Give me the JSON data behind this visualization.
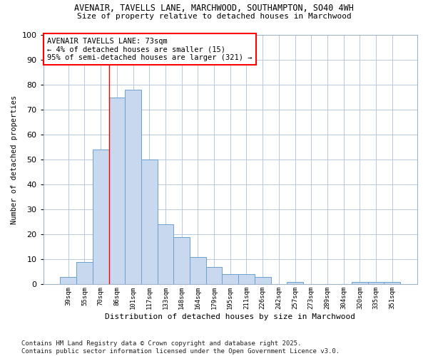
{
  "title1": "AVENAIR, TAVELLS LANE, MARCHWOOD, SOUTHAMPTON, SO40 4WH",
  "title2": "Size of property relative to detached houses in Marchwood",
  "xlabel": "Distribution of detached houses by size in Marchwood",
  "ylabel": "Number of detached properties",
  "categories": [
    "39sqm",
    "55sqm",
    "70sqm",
    "86sqm",
    "101sqm",
    "117sqm",
    "133sqm",
    "148sqm",
    "164sqm",
    "179sqm",
    "195sqm",
    "211sqm",
    "226sqm",
    "242sqm",
    "257sqm",
    "273sqm",
    "289sqm",
    "304sqm",
    "320sqm",
    "335sqm",
    "351sqm"
  ],
  "values": [
    3,
    9,
    54,
    75,
    78,
    50,
    24,
    19,
    11,
    7,
    4,
    4,
    3,
    0,
    1,
    0,
    0,
    0,
    1,
    1,
    1
  ],
  "bar_color": "#c8d8ee",
  "bar_edge_color": "#6aa0d0",
  "grid_color": "#b8c8dc",
  "background_color": "#ffffff",
  "plot_bg_color": "#ffffff",
  "annotation_text": "AVENAIR TAVELLS LANE: 73sqm\n← 4% of detached houses are smaller (15)\n95% of semi-detached houses are larger (321) →",
  "vline_x": 2.5,
  "footnote": "Contains HM Land Registry data © Crown copyright and database right 2025.\nContains public sector information licensed under the Open Government Licence v3.0.",
  "ylim": [
    0,
    100
  ],
  "yticks": [
    0,
    10,
    20,
    30,
    40,
    50,
    60,
    70,
    80,
    90,
    100
  ]
}
